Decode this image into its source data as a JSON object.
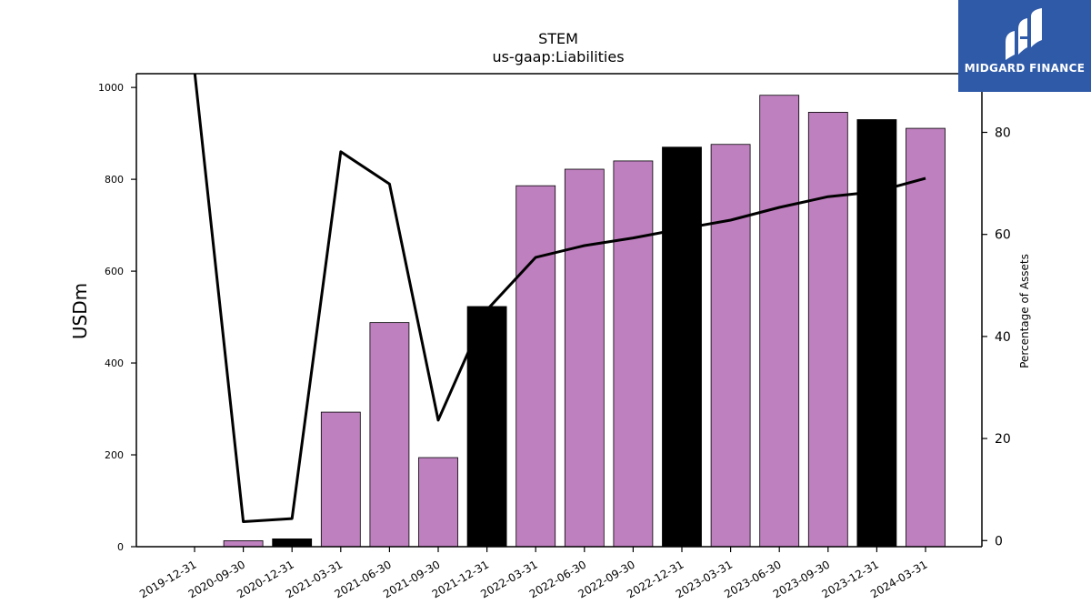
{
  "chart_data": {
    "type": "bar",
    "title": "STEM",
    "subtitle": "us-gaap:Liabilities",
    "ylabel": "USDm",
    "y2label": "Percentage of Assets",
    "categories": [
      "2019-12-31",
      "2020-09-30",
      "2020-12-31",
      "2021-03-31",
      "2021-06-30",
      "2021-09-30",
      "2021-12-31",
      "2022-03-31",
      "2022-06-30",
      "2022-09-30",
      "2022-12-31",
      "2023-03-31",
      "2023-06-30",
      "2023-09-30",
      "2023-12-31",
      "2024-03-31"
    ],
    "values": [
      0,
      13,
      17,
      293,
      488,
      194,
      523,
      786,
      822,
      840,
      870,
      876,
      983,
      946,
      930,
      911
    ],
    "bar_highlight": [
      false,
      false,
      true,
      false,
      false,
      false,
      true,
      false,
      false,
      false,
      true,
      false,
      false,
      false,
      true,
      false
    ],
    "line_series": {
      "name": "Percentage of Assets",
      "values": [
        92,
        3.7,
        4.3,
        76.2,
        69.9,
        23.6,
        45.2,
        55.5,
        57.8,
        59.3,
        61.1,
        62.8,
        65.3,
        67.4,
        68.4,
        71.0
      ]
    },
    "ylim": [
      0,
      1030
    ],
    "y2lim": [
      -1.2,
      91.5
    ],
    "yticks": [
      0,
      200,
      400,
      600,
      800,
      1000
    ],
    "y2ticks": [
      0,
      20,
      40,
      60,
      80
    ],
    "colors": {
      "bar": "#bf80bf",
      "bar_highlight": "#000000",
      "line": "#000000",
      "axis": "#000000"
    },
    "grid": false,
    "legend": "none"
  },
  "logo": {
    "text": "MIDGARD FINANCE",
    "background": "#2f5aa8"
  }
}
